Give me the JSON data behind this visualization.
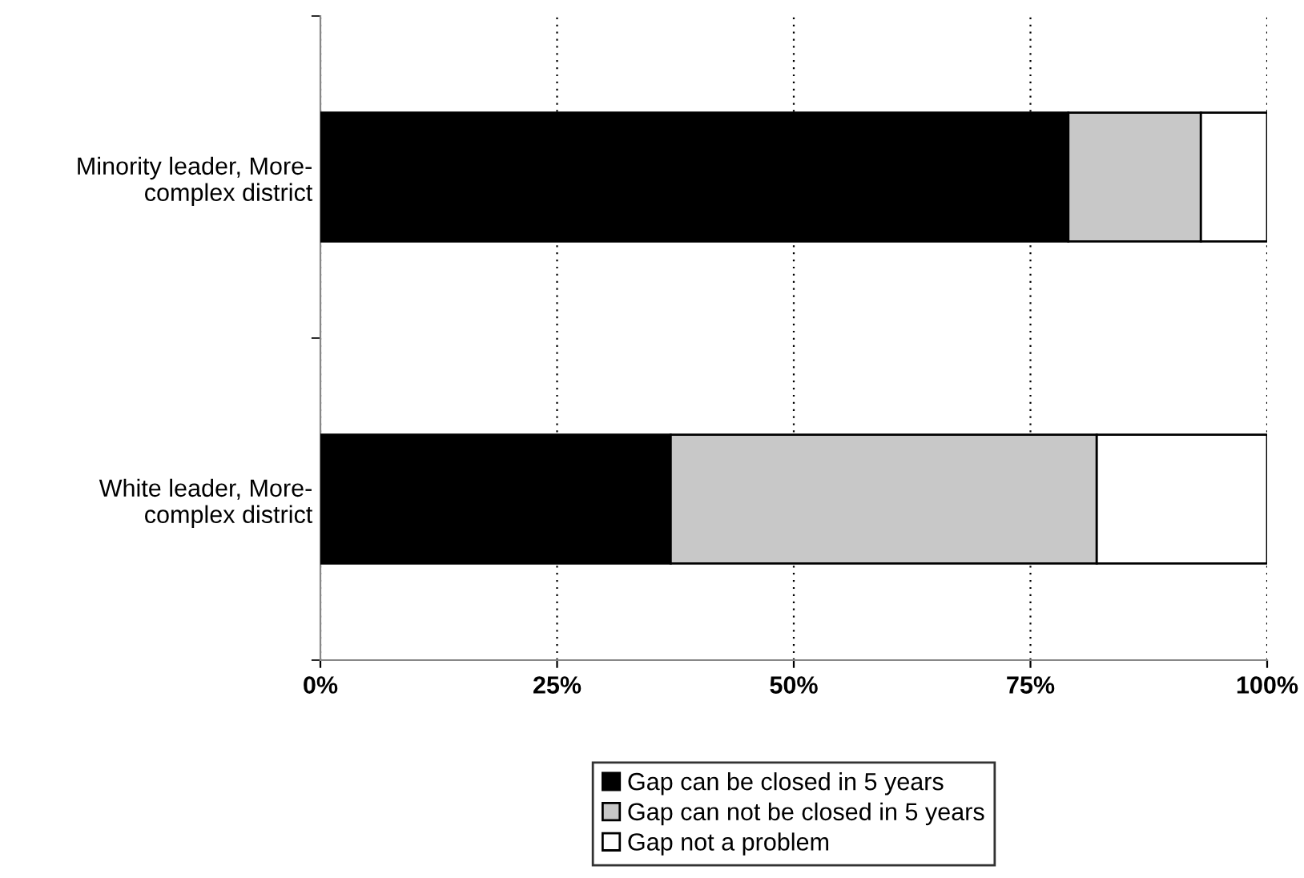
{
  "chart_data": {
    "type": "bar",
    "orientation": "horizontal",
    "stacked": true,
    "categories": [
      "Minority leader, More-\ncomplex district",
      "White leader, More-\ncomplex district"
    ],
    "series": [
      {
        "name": "Gap can be closed in 5 years",
        "color": "#000000",
        "values": [
          79,
          37
        ]
      },
      {
        "name": "Gap can not be closed in 5 years",
        "color": "#c8c8c8",
        "values": [
          14,
          45
        ]
      },
      {
        "name": "Gap not a problem",
        "color": "#ffffff",
        "values": [
          7,
          18
        ]
      }
    ],
    "xlim": [
      0,
      100
    ],
    "xticks": [
      {
        "value": 0,
        "label": "0%"
      },
      {
        "value": 25,
        "label": "25%"
      },
      {
        "value": 50,
        "label": "50%"
      },
      {
        "value": 75,
        "label": "75%"
      },
      {
        "value": 100,
        "label": "100%"
      }
    ],
    "grid": "x",
    "legend": "bottom"
  }
}
